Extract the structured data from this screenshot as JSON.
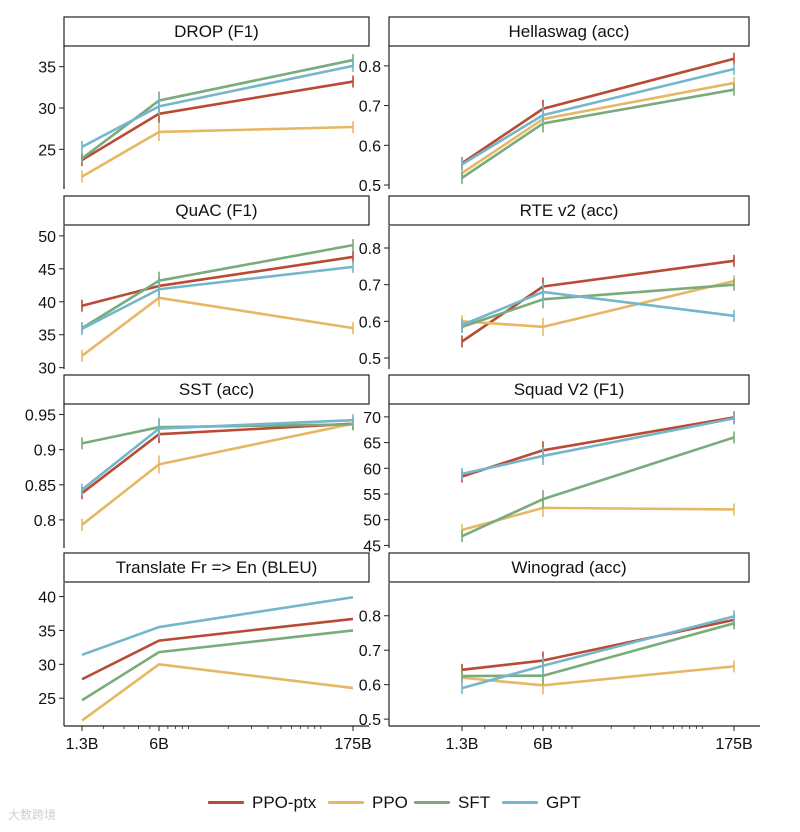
{
  "colors": {
    "ppo_ptx": "#b94a34",
    "ppo": "#e6b865",
    "sft": "#7aab7a",
    "gpt": "#74b6cc"
  },
  "legend": [
    {
      "name": "PPO-ptx",
      "color": "#b94a34"
    },
    {
      "name": "PPO",
      "color": "#e6b865"
    },
    {
      "name": "SFT",
      "color": "#7aab7a"
    },
    {
      "name": "GPT",
      "color": "#74b6cc"
    }
  ],
  "watermark": "大数跨境",
  "chart_data": [
    {
      "type": "line",
      "title": "DROP (F1)",
      "x": [
        1.3,
        6,
        175
      ],
      "x_tick_labels": [],
      "y_ticks": [
        25,
        30,
        35
      ],
      "ylim": [
        20.2,
        37.5
      ],
      "series": [
        {
          "name": "PPO-ptx",
          "values": [
            23.7,
            29.3,
            33.2
          ]
        },
        {
          "name": "PPO",
          "values": [
            21.7,
            27.1,
            27.7
          ]
        },
        {
          "name": "SFT",
          "values": [
            23.9,
            30.9,
            35.8
          ]
        },
        {
          "name": "GPT",
          "values": [
            25.3,
            30.2,
            35.1
          ]
        }
      ]
    },
    {
      "type": "line",
      "title": "Hellaswag (acc)",
      "x": [
        1.3,
        6,
        175
      ],
      "x_tick_labels": [],
      "y_ticks": [
        0.5,
        0.6,
        0.7,
        0.8
      ],
      "ylim": [
        0.49,
        0.85
      ],
      "series": [
        {
          "name": "PPO-ptx",
          "values": [
            0.555,
            0.692,
            0.818
          ]
        },
        {
          "name": "PPO",
          "values": [
            0.53,
            0.666,
            0.757
          ]
        },
        {
          "name": "SFT",
          "values": [
            0.518,
            0.655,
            0.74
          ]
        },
        {
          "name": "GPT",
          "values": [
            0.552,
            0.676,
            0.792
          ]
        }
      ]
    },
    {
      "type": "line",
      "title": "QuAC (F1)",
      "x": [
        1.3,
        6,
        175
      ],
      "x_tick_labels": [],
      "y_ticks": [
        30,
        35,
        40,
        45,
        50
      ],
      "ylim": [
        29.8,
        51.5
      ],
      "series": [
        {
          "name": "PPO-ptx",
          "values": [
            39.4,
            42.4,
            46.8
          ]
        },
        {
          "name": "PPO",
          "values": [
            31.8,
            40.6,
            36.0
          ]
        },
        {
          "name": "SFT",
          "values": [
            36.0,
            43.2,
            48.6
          ]
        },
        {
          "name": "GPT",
          "values": [
            35.9,
            41.9,
            45.3
          ]
        }
      ]
    },
    {
      "type": "line",
      "title": "RTE v2 (acc)",
      "x": [
        1.3,
        6,
        175
      ],
      "x_tick_labels": [],
      "y_ticks": [
        0.5,
        0.6,
        0.7,
        0.8
      ],
      "ylim": [
        0.47,
        0.86
      ],
      "series": [
        {
          "name": "PPO-ptx",
          "values": [
            0.545,
            0.695,
            0.765
          ]
        },
        {
          "name": "PPO",
          "values": [
            0.6,
            0.585,
            0.71
          ]
        },
        {
          "name": "SFT",
          "values": [
            0.585,
            0.66,
            0.7
          ]
        },
        {
          "name": "GPT",
          "values": [
            0.59,
            0.68,
            0.615
          ]
        }
      ]
    },
    {
      "type": "line",
      "title": "SST (acc)",
      "x": [
        1.3,
        6,
        175
      ],
      "x_tick_labels": [],
      "y_ticks": [
        0.8,
        0.85,
        0.9,
        0.95
      ],
      "ylim": [
        0.76,
        0.965
      ],
      "series": [
        {
          "name": "PPO-ptx",
          "values": [
            0.838,
            0.922,
            0.937
          ]
        },
        {
          "name": "PPO",
          "values": [
            0.793,
            0.879,
            0.937
          ]
        },
        {
          "name": "SFT",
          "values": [
            0.909,
            0.932,
            0.936
          ]
        },
        {
          "name": "GPT",
          "values": [
            0.843,
            0.93,
            0.942
          ]
        }
      ]
    },
    {
      "type": "line",
      "title": "Squad V2 (F1)",
      "x": [
        1.3,
        6,
        175
      ],
      "x_tick_labels": [],
      "y_ticks": [
        45,
        50,
        55,
        60,
        65,
        70
      ],
      "ylim": [
        44.5,
        72.5
      ],
      "series": [
        {
          "name": "PPO-ptx",
          "values": [
            58.4,
            63.5,
            69.9
          ]
        },
        {
          "name": "PPO",
          "values": [
            48.0,
            52.3,
            52.0
          ]
        },
        {
          "name": "SFT",
          "values": [
            46.8,
            54.0,
            66.0
          ]
        },
        {
          "name": "GPT",
          "values": [
            58.9,
            62.4,
            69.7
          ]
        }
      ]
    },
    {
      "type": "line",
      "title": "Translate Fr => En (BLEU)",
      "x": [
        1.3,
        6,
        175
      ],
      "x_tick_labels": [
        "1.3B",
        "6B",
        "175B"
      ],
      "y_ticks": [
        25,
        30,
        35,
        40
      ],
      "ylim": [
        20.9,
        42.0
      ],
      "series": [
        {
          "name": "PPO-ptx",
          "values": [
            27.8,
            33.5,
            36.7
          ]
        },
        {
          "name": "PPO",
          "values": [
            21.7,
            30.0,
            26.5
          ]
        },
        {
          "name": "SFT",
          "values": [
            24.7,
            31.8,
            35.0
          ]
        },
        {
          "name": "GPT",
          "values": [
            31.4,
            35.5,
            39.9
          ]
        }
      ]
    },
    {
      "type": "line",
      "title": "Winograd (acc)",
      "x": [
        1.3,
        6,
        175
      ],
      "x_tick_labels": [
        "1.3B",
        "6B",
        "175B"
      ],
      "y_ticks": [
        0.5,
        0.6,
        0.7,
        0.8
      ],
      "ylim": [
        0.48,
        0.895
      ],
      "series": [
        {
          "name": "PPO-ptx",
          "values": [
            0.643,
            0.67,
            0.788
          ]
        },
        {
          "name": "PPO",
          "values": [
            0.62,
            0.598,
            0.653
          ]
        },
        {
          "name": "SFT",
          "values": [
            0.625,
            0.626,
            0.778
          ]
        },
        {
          "name": "GPT",
          "values": [
            0.59,
            0.655,
            0.798
          ]
        }
      ]
    }
  ]
}
